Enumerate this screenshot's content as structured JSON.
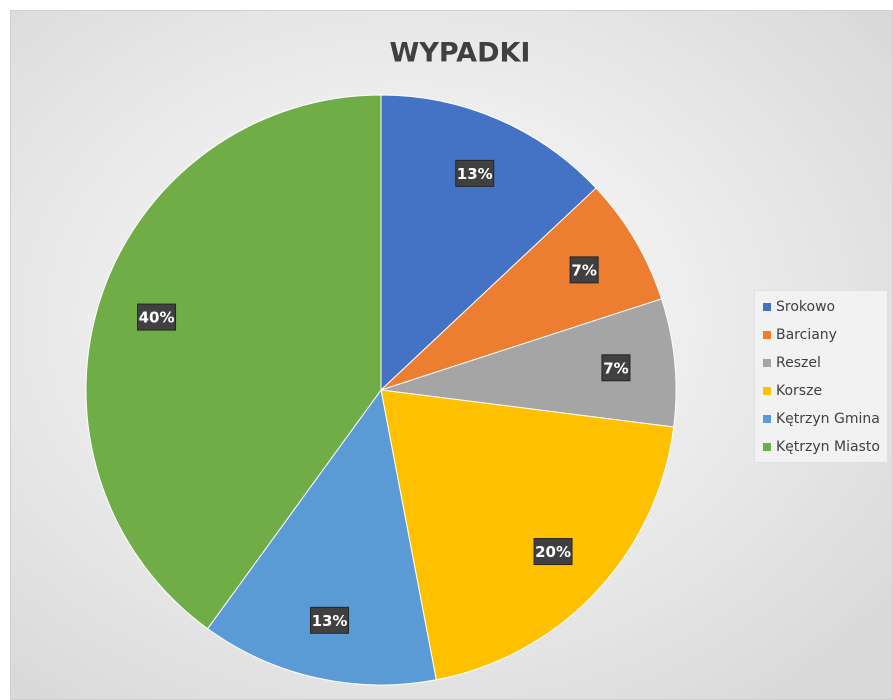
{
  "chart_data": {
    "type": "pie",
    "title": "WYPADKI",
    "categories": [
      "Srokowo",
      "Barciany",
      "Reszel",
      "Korsze",
      "Kętrzyn Gmina",
      "Kętrzyn Miasto"
    ],
    "values": [
      13,
      7,
      7,
      20,
      13,
      40
    ],
    "value_labels": [
      "13%",
      "7%",
      "7%",
      "20%",
      "13%",
      "40%"
    ],
    "colors": [
      "#4472c4",
      "#ed7d31",
      "#a5a5a5",
      "#ffc000",
      "#5b9bd5",
      "#70ad47"
    ],
    "legend": "right"
  }
}
